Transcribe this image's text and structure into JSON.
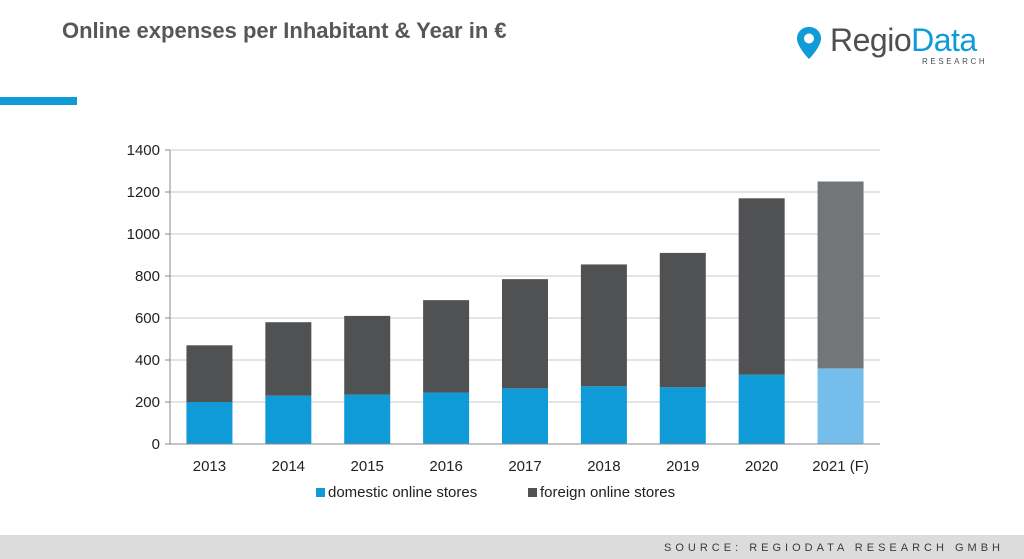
{
  "header": {
    "title": "Online expenses per Inhabitant & Year in €"
  },
  "logo": {
    "text_part1": "Regio",
    "text_part2": "Data",
    "subtext": "RESEARCH"
  },
  "footer": {
    "source": "SOURCE: REGIODATA RESEARCH GMBH"
  },
  "colors": {
    "domestic": "#0f9ad8",
    "foreign": "#4f5152",
    "domestic_forecast": "#75bdea",
    "foreign_forecast": "#727678",
    "accent": "#0f9ad8"
  },
  "chart_data": {
    "type": "bar",
    "stacked": true,
    "title": "",
    "xlabel": "",
    "ylabel": "",
    "categories": [
      "2013",
      "2014",
      "2015",
      "2016",
      "2017",
      "2018",
      "2019",
      "2020",
      "2021 (F)"
    ],
    "series": [
      {
        "name": "domestic online stores",
        "values": [
          200,
          230,
          235,
          245,
          265,
          275,
          270,
          330,
          360
        ]
      },
      {
        "name": "foreign online stores",
        "values": [
          270,
          350,
          375,
          440,
          520,
          580,
          640,
          840,
          890
        ]
      }
    ],
    "forecast_categories": [
      "2021 (F)"
    ],
    "ylim": [
      0,
      1400
    ],
    "yticks": [
      0,
      200,
      400,
      600,
      800,
      1000,
      1200,
      1400
    ],
    "grid": true,
    "legend_position": "bottom"
  }
}
